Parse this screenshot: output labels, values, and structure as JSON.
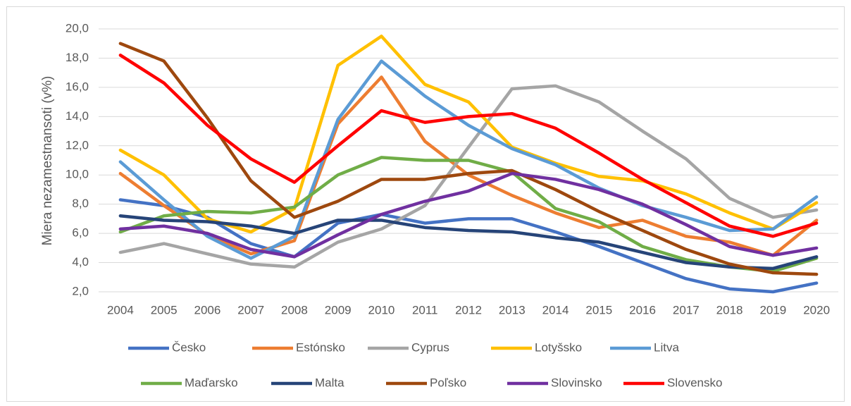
{
  "chart_data": {
    "type": "line",
    "y_label": "Miera nezamestnansoti (v%)",
    "categories": [
      "2004",
      "2005",
      "2006",
      "2007",
      "2008",
      "2009",
      "2010",
      "2011",
      "2012",
      "2013",
      "2014",
      "2015",
      "2016",
      "2017",
      "2018",
      "2019",
      "2020"
    ],
    "ylim": [
      2,
      20
    ],
    "yticks": [
      {
        "value": 2,
        "label": "2,0"
      },
      {
        "value": 4,
        "label": "4,0"
      },
      {
        "value": 6,
        "label": "6,0"
      },
      {
        "value": 8,
        "label": "8,0"
      },
      {
        "value": 10,
        "label": "10,0"
      },
      {
        "value": 12,
        "label": "12,0"
      },
      {
        "value": 14,
        "label": "14,0"
      },
      {
        "value": 16,
        "label": "16,0"
      },
      {
        "value": 18,
        "label": "18,0"
      },
      {
        "value": 20,
        "label": "20,0"
      }
    ],
    "grid": true,
    "legend": "bottom",
    "series": [
      {
        "name": "Česko",
        "color": "#4472c4",
        "values": [
          8.3,
          7.9,
          7.1,
          5.3,
          4.4,
          6.7,
          7.3,
          6.7,
          7.0,
          7.0,
          6.1,
          5.1,
          4.0,
          2.9,
          2.2,
          2.0,
          2.6
        ]
      },
      {
        "name": "Estónsko",
        "color": "#ed7d31",
        "values": [
          10.1,
          7.9,
          5.9,
          4.6,
          5.5,
          13.5,
          16.7,
          12.3,
          10.0,
          8.6,
          7.4,
          6.4,
          6.9,
          5.8,
          5.4,
          4.5,
          6.9
        ]
      },
      {
        "name": "Cyprus",
        "color": "#a5a5a5",
        "values": [
          4.7,
          5.3,
          4.6,
          3.9,
          3.7,
          5.4,
          6.3,
          7.9,
          11.9,
          15.9,
          16.1,
          15.0,
          13.0,
          11.1,
          8.4,
          7.1,
          7.6
        ]
      },
      {
        "name": "Lotyšsko",
        "color": "#ffc000",
        "values": [
          11.7,
          10.0,
          7.0,
          6.1,
          7.7,
          17.5,
          19.5,
          16.2,
          15.0,
          11.9,
          10.8,
          9.9,
          9.6,
          8.7,
          7.4,
          6.3,
          8.1
        ]
      },
      {
        "name": "Litva",
        "color": "#5b9bd5",
        "values": [
          10.9,
          8.3,
          5.8,
          4.3,
          5.8,
          13.8,
          17.8,
          15.4,
          13.4,
          11.8,
          10.7,
          9.1,
          7.9,
          7.1,
          6.2,
          6.3,
          8.5
        ]
      },
      {
        "name": "Maďarsko",
        "color": "#70ad47",
        "values": [
          6.1,
          7.2,
          7.5,
          7.4,
          7.8,
          10.0,
          11.2,
          11.0,
          11.0,
          10.2,
          7.7,
          6.8,
          5.1,
          4.2,
          3.7,
          3.4,
          4.3
        ]
      },
      {
        "name": "Malta",
        "color": "#264478",
        "values": [
          7.2,
          6.9,
          6.8,
          6.5,
          6.0,
          6.9,
          6.9,
          6.4,
          6.2,
          6.1,
          5.7,
          5.4,
          4.7,
          4.0,
          3.7,
          3.6,
          4.4
        ]
      },
      {
        "name": "Poľsko",
        "color": "#9e480e",
        "values": [
          19.0,
          17.8,
          13.9,
          9.6,
          7.1,
          8.2,
          9.7,
          9.7,
          10.1,
          10.3,
          9.0,
          7.5,
          6.2,
          4.9,
          3.9,
          3.3,
          3.2
        ]
      },
      {
        "name": "Slovinsko",
        "color": "#7030a0",
        "values": [
          6.3,
          6.5,
          6.0,
          4.9,
          4.4,
          5.9,
          7.3,
          8.2,
          8.9,
          10.1,
          9.7,
          9.0,
          8.0,
          6.6,
          5.1,
          4.5,
          5.0
        ]
      },
      {
        "name": "Slovensko",
        "color": "#ff0000",
        "values": [
          18.2,
          16.3,
          13.4,
          11.1,
          9.5,
          12.0,
          14.4,
          13.6,
          14.0,
          14.2,
          13.2,
          11.5,
          9.7,
          8.1,
          6.5,
          5.8,
          6.7
        ]
      }
    ]
  }
}
